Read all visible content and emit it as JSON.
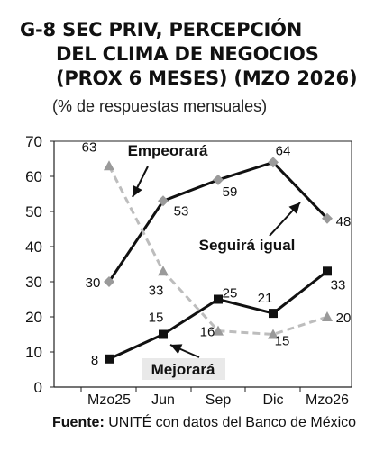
{
  "title_lines": [
    "G-8 SEC PRIV, PERCEPCIÓN",
    "DEL CLIMA DE NEGOCIOS",
    "(PROX 6 MESES) (MZO 2026)"
  ],
  "subtitle": "(% de respuestas mensuales)",
  "source": {
    "label": "Fuente:",
    "text": "UNITÉ con datos del Banco de México"
  },
  "chart_data": {
    "type": "line",
    "categories": [
      "Mzo25",
      "Jun",
      "Sep",
      "Dic",
      "Mzo26"
    ],
    "ylim": [
      0,
      70
    ],
    "yticks": [
      0,
      10,
      20,
      30,
      40,
      50,
      60,
      70
    ],
    "grid": false,
    "series": [
      {
        "name": "Seguirá igual",
        "values": [
          30,
          53,
          59,
          64,
          48
        ],
        "color": "#111111",
        "marker": "diamond",
        "marker_color": "#9a9a9a",
        "style": "solid"
      },
      {
        "name": "Empeorará",
        "values": [
          63,
          33,
          16,
          15,
          20
        ],
        "color": "#bdbdbd",
        "marker": "triangle",
        "marker_color": "#9a9a9a",
        "style": "dashed"
      },
      {
        "name": "Mejorará",
        "values": [
          8,
          15,
          25,
          21,
          33
        ],
        "color": "#111111",
        "marker": "square",
        "marker_color": "#111111",
        "style": "solid"
      }
    ]
  }
}
